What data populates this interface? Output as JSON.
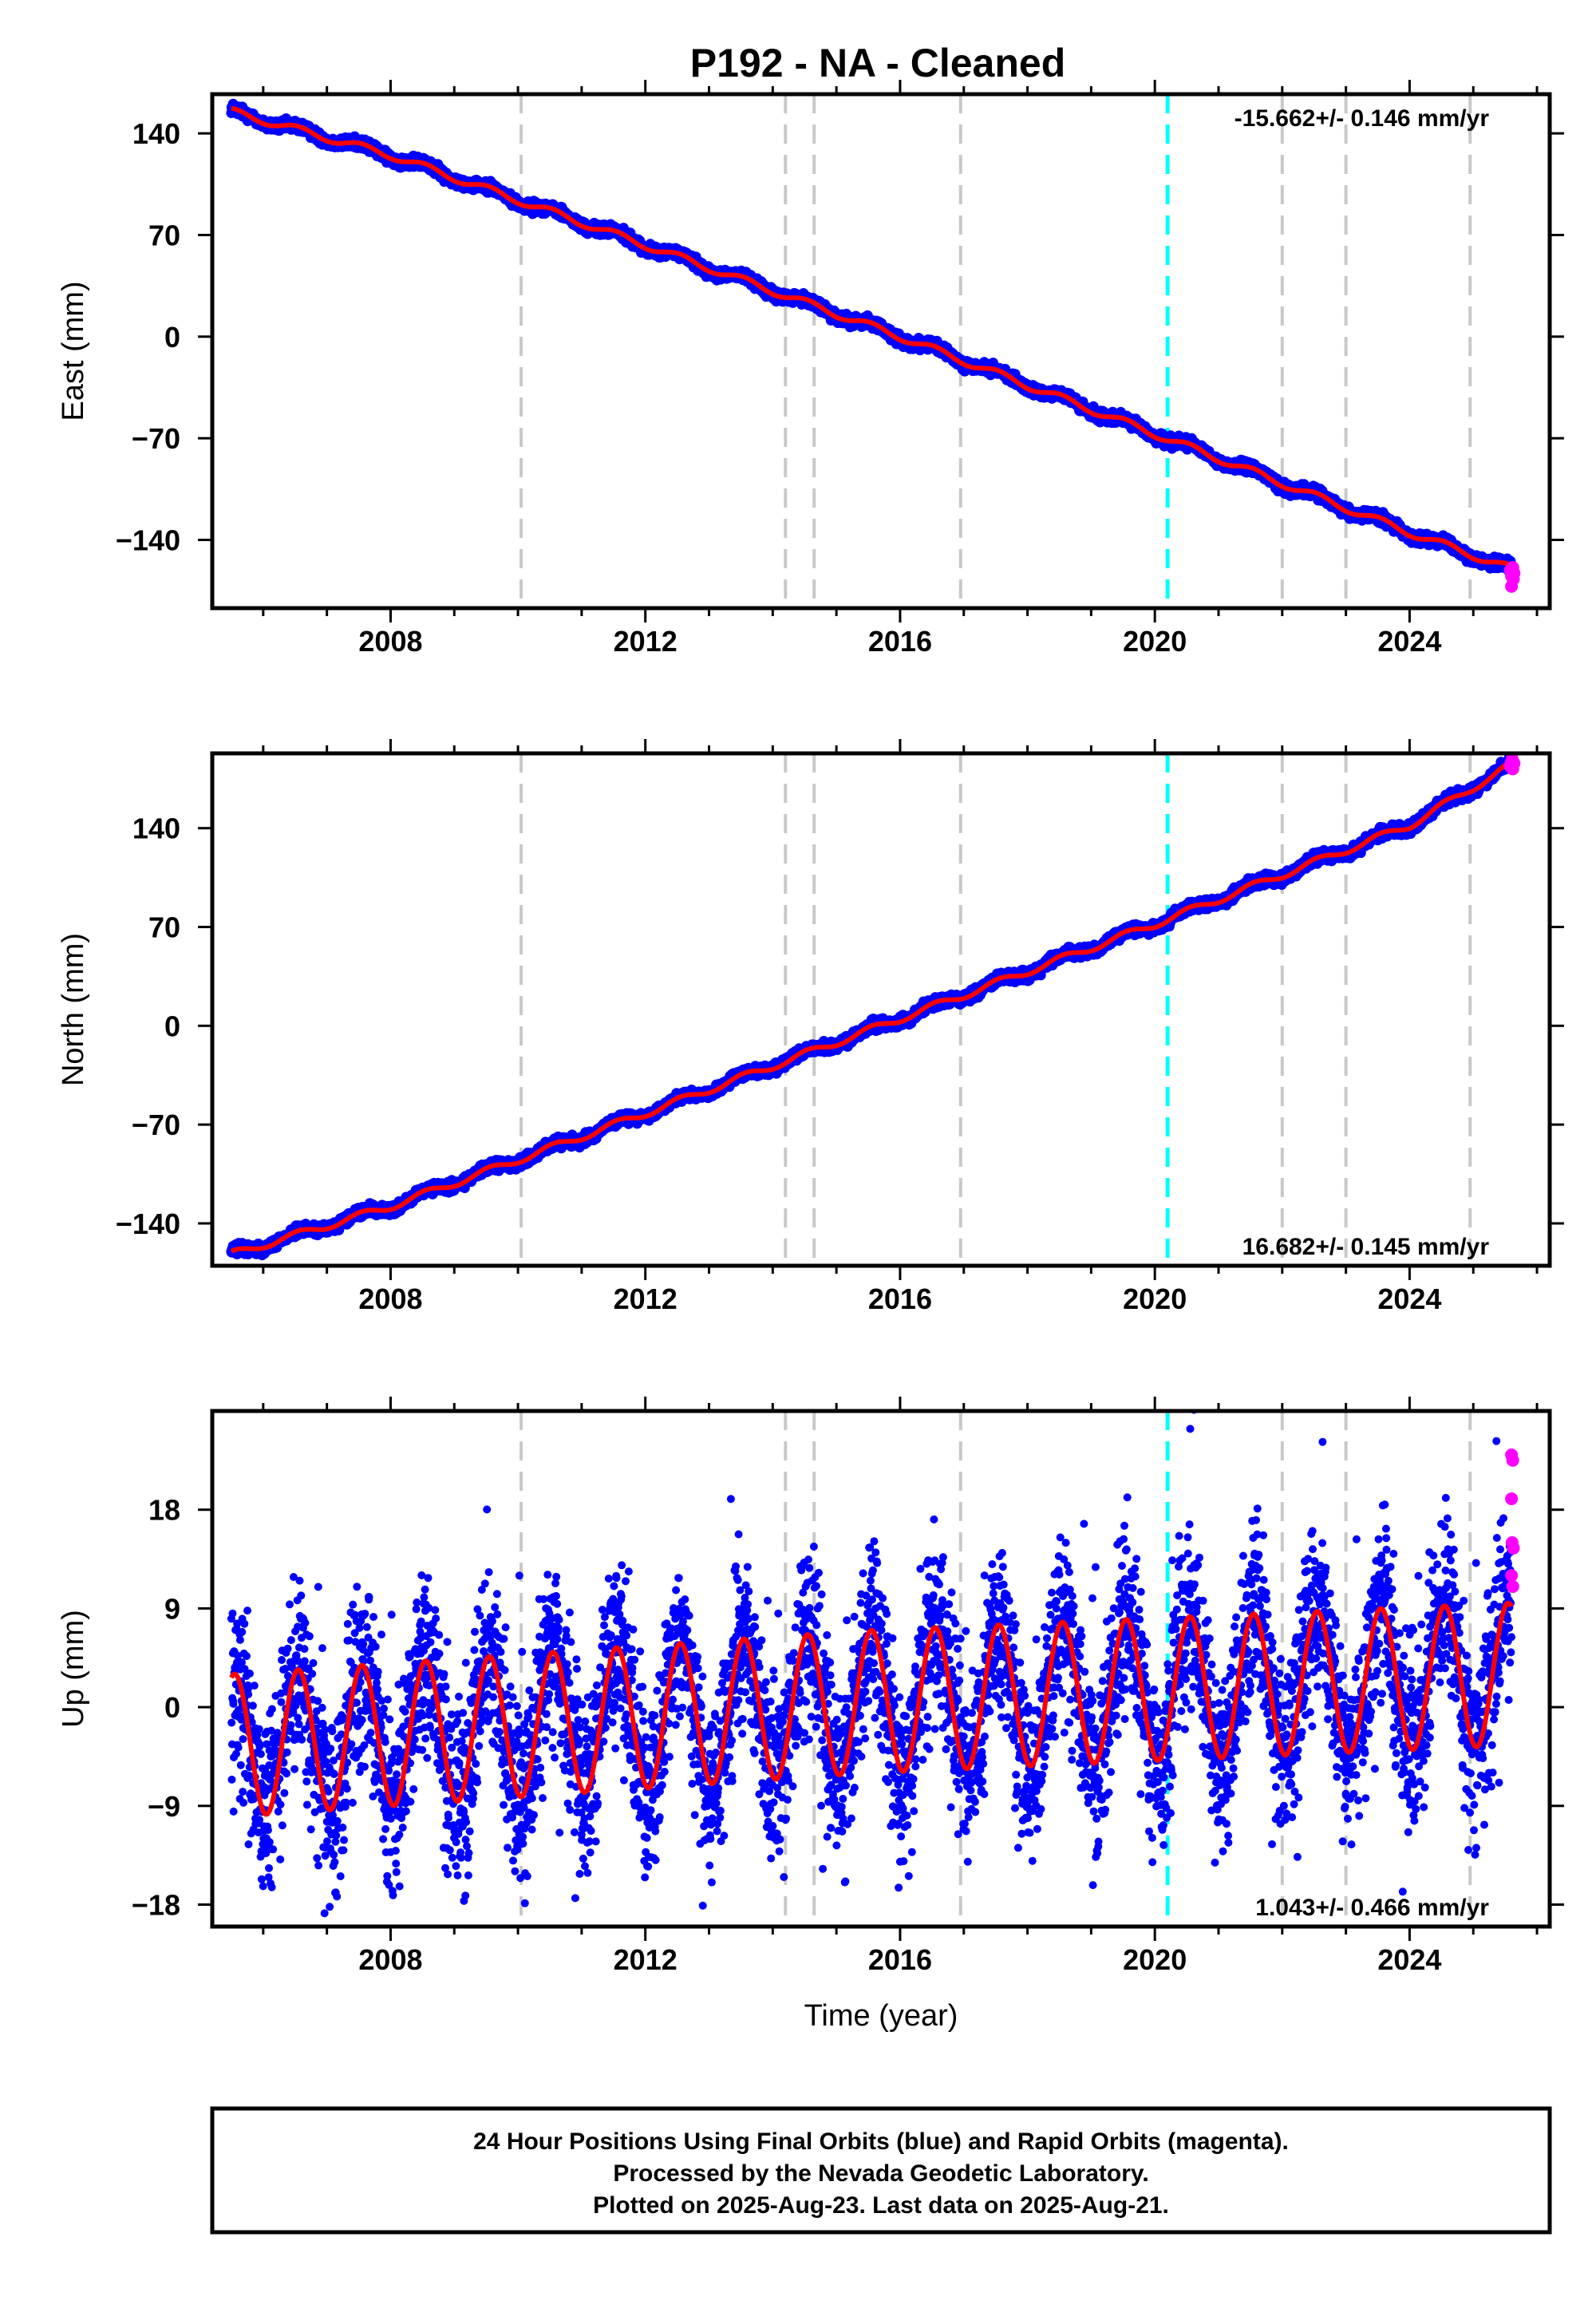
{
  "title": "P192  - NA - Cleaned",
  "colors": {
    "final_orbits": "#0000ff",
    "rapid_orbits": "#ff00ff",
    "model_fit": "#ff0000",
    "event_line": "#c8c8c8",
    "equipment_change_line": "#00ffff"
  },
  "chart_data": [
    {
      "type": "scatter",
      "component": "East",
      "ylabel": "East (mm)",
      "xlabel": "",
      "xlim": [
        2005.2,
        2026.2
      ],
      "ylim": [
        -187,
        167
      ],
      "yticks": [
        -140,
        -70,
        0,
        70,
        140
      ],
      "xticks": [
        2008,
        2012,
        2016,
        2020,
        2024
      ],
      "rate_label": "-15.662+/- 0.146 mm/yr",
      "rate_position": "top-right",
      "gray_dashed_lines": [
        2010.05,
        2014.2,
        2014.65,
        2016.95,
        2022.0,
        2023.0,
        2024.95
      ],
      "cyan_dashed_lines": [
        2020.2
      ],
      "trend_points": [
        [
          2005.5,
          155
        ],
        [
          2008.0,
          125
        ],
        [
          2012.0,
          63
        ],
        [
          2016.0,
          0
        ],
        [
          2020.0,
          -67
        ],
        [
          2024.0,
          -135
        ],
        [
          2025.6,
          -160
        ]
      ],
      "seasonal_amplitude": 2.5,
      "noise": 1.8,
      "rapid_points": [
        [
          2025.58,
          -161
        ],
        [
          2025.6,
          -165
        ],
        [
          2025.62,
          -159
        ],
        [
          2025.64,
          -163
        ],
        [
          2025.6,
          -172
        ],
        [
          2025.63,
          -167
        ]
      ]
    },
    {
      "type": "scatter",
      "component": "North",
      "ylabel": "North (mm)",
      "xlabel": "",
      "xlim": [
        2005.2,
        2026.2
      ],
      "ylim": [
        -170,
        193
      ],
      "yticks": [
        -140,
        -70,
        0,
        70,
        140
      ],
      "xticks": [
        2008,
        2012,
        2016,
        2020,
        2024
      ],
      "rate_label": "16.682+/- 0.145 mm/yr",
      "rate_position": "bottom-right",
      "gray_dashed_lines": [
        2010.05,
        2014.2,
        2014.65,
        2016.95,
        2022.0,
        2023.0,
        2024.95
      ],
      "cyan_dashed_lines": [
        2020.2
      ],
      "trend_points": [
        [
          2005.5,
          -162
        ],
        [
          2008.0,
          -128
        ],
        [
          2012.0,
          -62
        ],
        [
          2016.0,
          5
        ],
        [
          2020.0,
          72
        ],
        [
          2024.0,
          142
        ],
        [
          2025.6,
          185
        ]
      ],
      "seasonal_amplitude": 2.5,
      "noise": 1.8,
      "rapid_points": [
        [
          2025.58,
          184
        ],
        [
          2025.6,
          187
        ],
        [
          2025.62,
          182
        ],
        [
          2025.64,
          186
        ],
        [
          2025.61,
          189
        ]
      ]
    },
    {
      "type": "scatter",
      "component": "Up",
      "ylabel": "Up (mm)",
      "xlabel": "Time (year)",
      "xlim": [
        2005.2,
        2026.2
      ],
      "ylim": [
        -20,
        27
      ],
      "yticks": [
        -18,
        -9,
        0,
        9,
        18
      ],
      "xticks": [
        2008,
        2012,
        2016,
        2020,
        2024
      ],
      "rate_label": "1.043+/- 0.466 mm/yr",
      "rate_position": "bottom-right",
      "gray_dashed_lines": [
        2010.05,
        2014.2,
        2014.65,
        2016.95,
        2022.0,
        2023.0,
        2024.95
      ],
      "cyan_dashed_lines": [
        2020.2
      ],
      "trend_points": [
        [
          2005.5,
          -3.5
        ],
        [
          2015.5,
          0.5
        ],
        [
          2025.6,
          3
        ]
      ],
      "seasonal_amplitude": 6.5,
      "noise": 4.0,
      "rapid_points": [
        [
          2025.6,
          23
        ],
        [
          2025.62,
          22.5
        ],
        [
          2025.6,
          19
        ],
        [
          2025.61,
          15
        ],
        [
          2025.63,
          14.5
        ],
        [
          2025.6,
          12
        ],
        [
          2025.62,
          11
        ]
      ]
    }
  ],
  "footer": {
    "line1": "24 Hour Positions Using Final Orbits (blue) and Rapid Orbits (magenta).",
    "line2": "Processed by the Nevada Geodetic Laboratory.",
    "line3": "Plotted on 2025-Aug-23. Last data on 2025-Aug-21."
  }
}
